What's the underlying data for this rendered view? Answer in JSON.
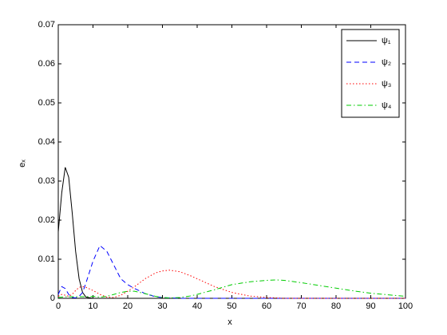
{
  "chart_data": {
    "type": "line",
    "xlabel": "x",
    "ylabel": "eₓ",
    "x": [
      0,
      1,
      2,
      3,
      4,
      5,
      6,
      7,
      8,
      10,
      12,
      14,
      16,
      18,
      20,
      22,
      25,
      28,
      30,
      32,
      35,
      38,
      40,
      45,
      50,
      55,
      60,
      63,
      65,
      70,
      75,
      80,
      85,
      90,
      95,
      100
    ],
    "series": [
      {
        "name": "ψ₁",
        "color": "#000000",
        "dash": "solid",
        "values": [
          0.017,
          0.027,
          0.0335,
          0.031,
          0.022,
          0.012,
          0.005,
          0.0015,
          0.0003,
          0,
          0,
          0,
          0,
          0,
          0,
          0,
          0,
          0,
          0,
          0,
          0,
          0,
          0,
          0,
          0,
          0,
          0,
          0,
          0,
          0,
          0,
          0,
          0,
          0,
          0,
          0
        ]
      },
      {
        "name": "ψ₂",
        "color": "#0000ff",
        "dash": "dashed",
        "values": [
          0.001,
          0.003,
          0.0025,
          0.001,
          0.0002,
          0.0001,
          0.0005,
          0.0015,
          0.004,
          0.0095,
          0.0135,
          0.012,
          0.0085,
          0.005,
          0.0035,
          0.0025,
          0.0012,
          0.0004,
          0.0002,
          0.0001,
          0,
          0,
          0,
          0,
          0,
          0,
          0,
          0,
          0,
          0,
          0,
          0,
          0,
          0,
          0,
          0
        ]
      },
      {
        "name": "ψ₃",
        "color": "#ff0000",
        "dash": "dotted",
        "values": [
          0.0005,
          0.001,
          0.0008,
          0.0005,
          0.001,
          0.002,
          0.0028,
          0.003,
          0.0028,
          0.002,
          0.001,
          0.0003,
          0.0002,
          0.0008,
          0.0018,
          0.003,
          0.005,
          0.0065,
          0.007,
          0.0072,
          0.0068,
          0.0058,
          0.005,
          0.003,
          0.0015,
          0.0006,
          0.0002,
          0.0001,
          0,
          0,
          0,
          0,
          0,
          0,
          0,
          0
        ]
      },
      {
        "name": "ψ₄",
        "color": "#00cc00",
        "dash": "dashdot",
        "values": [
          0.0002,
          0.0003,
          0.0004,
          0.0004,
          0.0004,
          0.0004,
          0.0004,
          0.0004,
          0.0004,
          0.0005,
          0.0003,
          0.0005,
          0.001,
          0.0015,
          0.0018,
          0.0018,
          0.0012,
          0.0005,
          0.0002,
          0.0001,
          0.0002,
          0.0006,
          0.001,
          0.0022,
          0.0035,
          0.0042,
          0.0046,
          0.0047,
          0.0046,
          0.004,
          0.0033,
          0.0026,
          0.0019,
          0.0013,
          0.0009,
          0.0005
        ]
      }
    ],
    "xlim": [
      0,
      100
    ],
    "xticks": [
      0,
      10,
      20,
      30,
      40,
      50,
      60,
      70,
      80,
      90,
      100
    ],
    "ylim": [
      0,
      0.07
    ],
    "yticks": [
      0,
      0.01,
      0.02,
      0.03,
      0.04,
      0.05,
      0.06,
      0.07
    ],
    "grid": false,
    "legend": "upper right"
  }
}
